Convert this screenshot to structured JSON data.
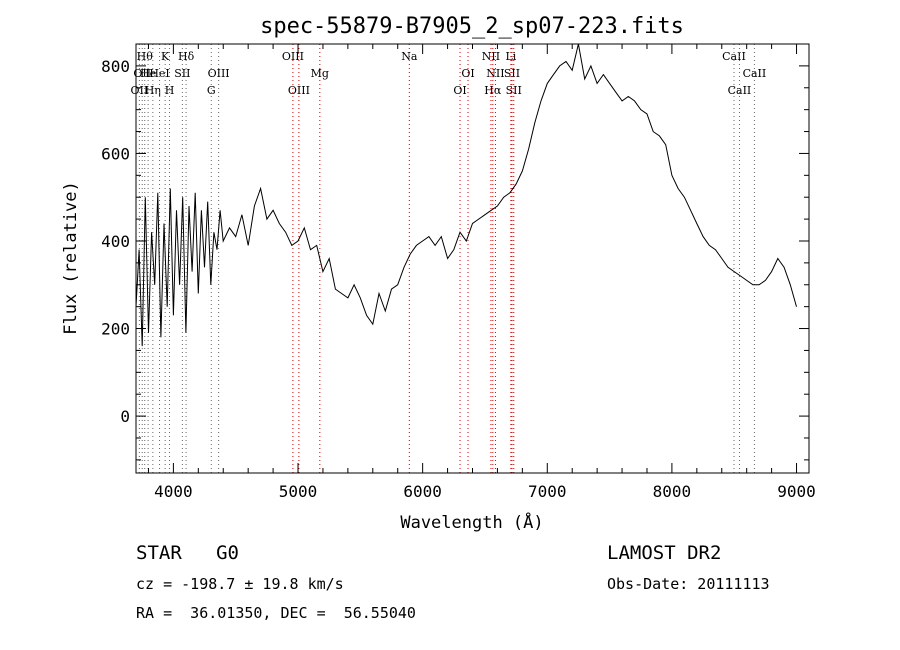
{
  "chart_data": {
    "type": "line",
    "title": "spec-55879-B7905_2_sp07-223.fits",
    "xlabel": "Wavelength (Å)",
    "ylabel": "Flux (relative)",
    "xlim": [
      3700,
      9100
    ],
    "ylim": [
      -130,
      850
    ],
    "xticks": [
      4000,
      5000,
      6000,
      7000,
      8000,
      9000
    ],
    "yticks": [
      0,
      200,
      400,
      600,
      800
    ],
    "grid": false,
    "series": [
      {
        "color": "#000000",
        "x": [
          3700,
          3725,
          3750,
          3775,
          3800,
          3825,
          3850,
          3875,
          3900,
          3925,
          3950,
          3975,
          4000,
          4025,
          4050,
          4075,
          4100,
          4125,
          4150,
          4175,
          4200,
          4225,
          4250,
          4275,
          4300,
          4325,
          4350,
          4375,
          4400,
          4450,
          4500,
          4550,
          4600,
          4650,
          4700,
          4750,
          4800,
          4850,
          4900,
          4950,
          5000,
          5050,
          5100,
          5150,
          5200,
          5250,
          5300,
          5350,
          5400,
          5450,
          5500,
          5550,
          5600,
          5650,
          5700,
          5750,
          5800,
          5850,
          5900,
          5950,
          6000,
          6050,
          6100,
          6150,
          6200,
          6250,
          6300,
          6350,
          6400,
          6450,
          6500,
          6550,
          6600,
          6650,
          6700,
          6750,
          6800,
          6850,
          6900,
          6950,
          7000,
          7050,
          7100,
          7150,
          7200,
          7250,
          7300,
          7350,
          7400,
          7450,
          7500,
          7550,
          7600,
          7650,
          7700,
          7750,
          7800,
          7850,
          7900,
          7950,
          8000,
          8050,
          8100,
          8150,
          8200,
          8250,
          8300,
          8350,
          8400,
          8450,
          8500,
          8550,
          8600,
          8650,
          8700,
          8750,
          8800,
          8850,
          8900,
          8950,
          9000
        ],
        "y": [
          250,
          380,
          160,
          500,
          190,
          420,
          300,
          510,
          180,
          440,
          250,
          520,
          230,
          470,
          300,
          500,
          190,
          480,
          330,
          510,
          280,
          470,
          340,
          490,
          300,
          420,
          380,
          470,
          400,
          430,
          410,
          460,
          390,
          480,
          520,
          450,
          470,
          440,
          420,
          390,
          400,
          430,
          380,
          390,
          330,
          360,
          290,
          280,
          270,
          300,
          270,
          230,
          210,
          280,
          240,
          290,
          300,
          340,
          370,
          390,
          400,
          410,
          390,
          410,
          360,
          380,
          420,
          400,
          440,
          450,
          460,
          470,
          480,
          500,
          510,
          530,
          560,
          610,
          670,
          720,
          760,
          780,
          800,
          810,
          790,
          850,
          770,
          800,
          760,
          780,
          760,
          740,
          720,
          730,
          720,
          700,
          690,
          650,
          640,
          620,
          550,
          520,
          500,
          470,
          440,
          410,
          390,
          380,
          360,
          340,
          330,
          320,
          310,
          300,
          300,
          310,
          330,
          360,
          340,
          300,
          250
        ]
      }
    ],
    "lines": [
      {
        "wavelength": 3727,
        "color": "#666666",
        "labels": [
          "OII"
        ],
        "rows": [
          2
        ]
      },
      {
        "wavelength": 3750,
        "color": "#666666",
        "labels": [
          "OII"
        ],
        "rows": [
          1
        ]
      },
      {
        "wavelength": 3770,
        "color": "#666666",
        "labels": [
          "Hθ"
        ],
        "rows": [
          0
        ]
      },
      {
        "wavelength": 3797,
        "color": "#666666",
        "labels": [
          "He"
        ],
        "rows": [
          1
        ]
      },
      {
        "wavelength": 3835,
        "color": "#666666",
        "labels": [
          "Hη"
        ],
        "rows": [
          2
        ]
      },
      {
        "wavelength": 3889,
        "color": "#666666",
        "labels": [
          "HeI"
        ],
        "rows": [
          1
        ]
      },
      {
        "wavelength": 3934,
        "color": "#666666",
        "labels": [
          "K"
        ],
        "rows": [
          0
        ]
      },
      {
        "wavelength": 3969,
        "color": "#666666",
        "labels": [
          "H"
        ],
        "rows": [
          2
        ]
      },
      {
        "wavelength": 4072,
        "color": "#666666",
        "labels": [
          "SII"
        ],
        "rows": [
          1
        ]
      },
      {
        "wavelength": 4102,
        "color": "#666666",
        "labels": [
          "Hδ"
        ],
        "rows": [
          0
        ]
      },
      {
        "wavelength": 4304,
        "color": "#666666",
        "labels": [
          "G"
        ],
        "rows": [
          2
        ]
      },
      {
        "wavelength": 4363,
        "color": "#666666",
        "labels": [
          "OIII"
        ],
        "rows": [
          1
        ]
      },
      {
        "wavelength": 4959,
        "color": "#cc0000",
        "labels": [
          "OIII"
        ],
        "rows": [
          0
        ]
      },
      {
        "wavelength": 5007,
        "color": "#cc0000",
        "labels": [
          "OIII"
        ],
        "rows": [
          2
        ]
      },
      {
        "wavelength": 5175,
        "color": "#cc0000",
        "labels": [
          "Mg"
        ],
        "rows": [
          1
        ]
      },
      {
        "wavelength": 5893,
        "color": "#cc0000",
        "labels": [
          "Na"
        ],
        "rows": [
          0
        ]
      },
      {
        "wavelength": 6300,
        "color": "#cc0000",
        "labels": [
          "OI"
        ],
        "rows": [
          2
        ]
      },
      {
        "wavelength": 6364,
        "color": "#cc0000",
        "labels": [
          "OI"
        ],
        "rows": [
          1
        ]
      },
      {
        "wavelength": 6548,
        "color": "#cc0000",
        "labels": [
          "NII"
        ],
        "rows": [
          0
        ]
      },
      {
        "wavelength": 6563,
        "color": "#cc0000",
        "labels": [
          "Hα"
        ],
        "rows": [
          2
        ]
      },
      {
        "wavelength": 6584,
        "color": "#cc0000",
        "labels": [
          "NII"
        ],
        "rows": [
          1
        ]
      },
      {
        "wavelength": 6708,
        "color": "#cc0000",
        "labels": [
          "Li"
        ],
        "rows": [
          0
        ]
      },
      {
        "wavelength": 6717,
        "color": "#cc0000",
        "labels": [
          "SII"
        ],
        "rows": [
          1
        ]
      },
      {
        "wavelength": 6731,
        "color": "#cc0000",
        "labels": [
          "SII"
        ],
        "rows": [
          2
        ]
      },
      {
        "wavelength": 8498,
        "color": "#666666",
        "labels": [
          "CaII"
        ],
        "rows": [
          0
        ]
      },
      {
        "wavelength": 8542,
        "color": "#666666",
        "labels": [
          "CaII"
        ],
        "rows": [
          2
        ]
      },
      {
        "wavelength": 8662,
        "color": "#666666",
        "labels": [
          "CaII"
        ],
        "rows": [
          1
        ]
      }
    ]
  },
  "footer": {
    "class_line": "STAR   G0",
    "survey": "LAMOST DR2",
    "cz": "cz = -198.7 ± 19.8 km/s",
    "obs_date": "Obs-Date: 20111113",
    "coords": "RA =  36.01350, DEC =  56.55040"
  }
}
